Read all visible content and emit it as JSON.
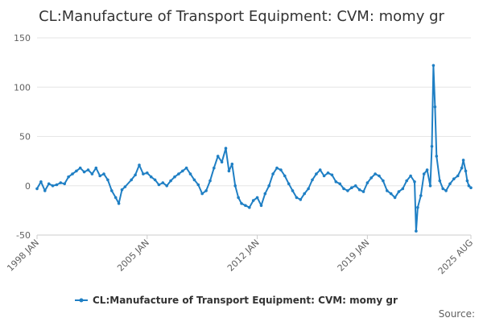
{
  "chart_data": {
    "type": "line",
    "title": "CL:Manufacture of Transport Equipment: CVM: momy gr",
    "xlabel": "",
    "ylabel": "",
    "x_range": [
      "1998-01",
      "2025-08"
    ],
    "ylim": [
      -50,
      150
    ],
    "y_ticks": [
      "150",
      "100",
      "50",
      "0",
      "-50"
    ],
    "y_tick_values": [
      150,
      100,
      50,
      0,
      -50
    ],
    "x_ticks": [
      "1998 JAN",
      "2005 JAN",
      "2012 JAN",
      "2019 JAN",
      "2025 AUG"
    ],
    "x_tick_years": [
      1998.0,
      2005.0,
      2012.0,
      2019.0,
      2025.583
    ],
    "legend": "top-center below chart",
    "series": [
      {
        "name": "CL:Manufacture of Transport Equipment: CVM: momy gr",
        "color": "#1f7fc4",
        "points": [
          [
            1998.0,
            -3
          ],
          [
            1998.25,
            4
          ],
          [
            1998.5,
            -5
          ],
          [
            1998.75,
            2
          ],
          [
            1999.0,
            0
          ],
          [
            1999.25,
            1
          ],
          [
            1999.5,
            3
          ],
          [
            1999.75,
            2
          ],
          [
            2000.0,
            9
          ],
          [
            2000.25,
            12
          ],
          [
            2000.5,
            15
          ],
          [
            2000.75,
            18
          ],
          [
            2001.0,
            14
          ],
          [
            2001.25,
            16
          ],
          [
            2001.5,
            12
          ],
          [
            2001.75,
            18
          ],
          [
            2002.0,
            10
          ],
          [
            2002.25,
            12
          ],
          [
            2002.5,
            6
          ],
          [
            2002.75,
            -5
          ],
          [
            2003.0,
            -12
          ],
          [
            2003.2,
            -18
          ],
          [
            2003.4,
            -4
          ],
          [
            2003.6,
            -1
          ],
          [
            2004.0,
            6
          ],
          [
            2004.25,
            11
          ],
          [
            2004.5,
            21
          ],
          [
            2004.75,
            12
          ],
          [
            2005.0,
            13
          ],
          [
            2005.25,
            9
          ],
          [
            2005.5,
            6
          ],
          [
            2005.75,
            1
          ],
          [
            2006.0,
            3
          ],
          [
            2006.25,
            0
          ],
          [
            2006.5,
            5
          ],
          [
            2006.75,
            9
          ],
          [
            2007.0,
            12
          ],
          [
            2007.25,
            15
          ],
          [
            2007.5,
            18
          ],
          [
            2007.75,
            12
          ],
          [
            2008.0,
            6
          ],
          [
            2008.25,
            1
          ],
          [
            2008.5,
            -8
          ],
          [
            2008.75,
            -5
          ],
          [
            2009.0,
            5
          ],
          [
            2009.25,
            18
          ],
          [
            2009.5,
            30
          ],
          [
            2009.75,
            24
          ],
          [
            2010.0,
            38
          ],
          [
            2010.2,
            15
          ],
          [
            2010.4,
            22
          ],
          [
            2010.6,
            0
          ],
          [
            2010.8,
            -12
          ],
          [
            2011.0,
            -18
          ],
          [
            2011.25,
            -20
          ],
          [
            2011.5,
            -22
          ],
          [
            2011.75,
            -15
          ],
          [
            2012.0,
            -12
          ],
          [
            2012.25,
            -20
          ],
          [
            2012.5,
            -8
          ],
          [
            2012.75,
            0
          ],
          [
            2013.0,
            12
          ],
          [
            2013.25,
            18
          ],
          [
            2013.5,
            16
          ],
          [
            2013.75,
            10
          ],
          [
            2014.0,
            2
          ],
          [
            2014.25,
            -5
          ],
          [
            2014.5,
            -12
          ],
          [
            2014.75,
            -14
          ],
          [
            2015.0,
            -8
          ],
          [
            2015.25,
            -3
          ],
          [
            2015.5,
            6
          ],
          [
            2015.75,
            12
          ],
          [
            2016.0,
            16
          ],
          [
            2016.25,
            10
          ],
          [
            2016.5,
            13
          ],
          [
            2016.75,
            11
          ],
          [
            2017.0,
            4
          ],
          [
            2017.25,
            2
          ],
          [
            2017.5,
            -3
          ],
          [
            2017.75,
            -5
          ],
          [
            2018.0,
            -2
          ],
          [
            2018.25,
            0
          ],
          [
            2018.5,
            -4
          ],
          [
            2018.75,
            -6
          ],
          [
            2019.0,
            3
          ],
          [
            2019.25,
            8
          ],
          [
            2019.5,
            12
          ],
          [
            2019.75,
            10
          ],
          [
            2020.0,
            5
          ],
          [
            2020.25,
            -5
          ],
          [
            2020.5,
            -8
          ],
          [
            2020.75,
            -12
          ],
          [
            2021.0,
            -6
          ],
          [
            2021.25,
            -3
          ],
          [
            2021.5,
            5
          ],
          [
            2021.75,
            10
          ],
          [
            2022.0,
            4
          ],
          [
            2022.1,
            -46
          ],
          [
            2022.2,
            -22
          ],
          [
            2022.4,
            -10
          ],
          [
            2022.6,
            12
          ],
          [
            2022.8,
            16
          ],
          [
            2023.0,
            0
          ],
          [
            2023.1,
            40
          ],
          [
            2023.2,
            122
          ],
          [
            2023.3,
            80
          ],
          [
            2023.4,
            30
          ],
          [
            2023.6,
            5
          ],
          [
            2023.8,
            -3
          ],
          [
            2024.0,
            -5
          ],
          [
            2024.25,
            2
          ],
          [
            2024.5,
            7
          ],
          [
            2024.75,
            10
          ],
          [
            2025.0,
            18
          ],
          [
            2025.1,
            26
          ],
          [
            2025.25,
            15
          ],
          [
            2025.35,
            5
          ],
          [
            2025.45,
            0
          ],
          [
            2025.583,
            -2
          ]
        ]
      }
    ],
    "source_label": "Source:"
  }
}
